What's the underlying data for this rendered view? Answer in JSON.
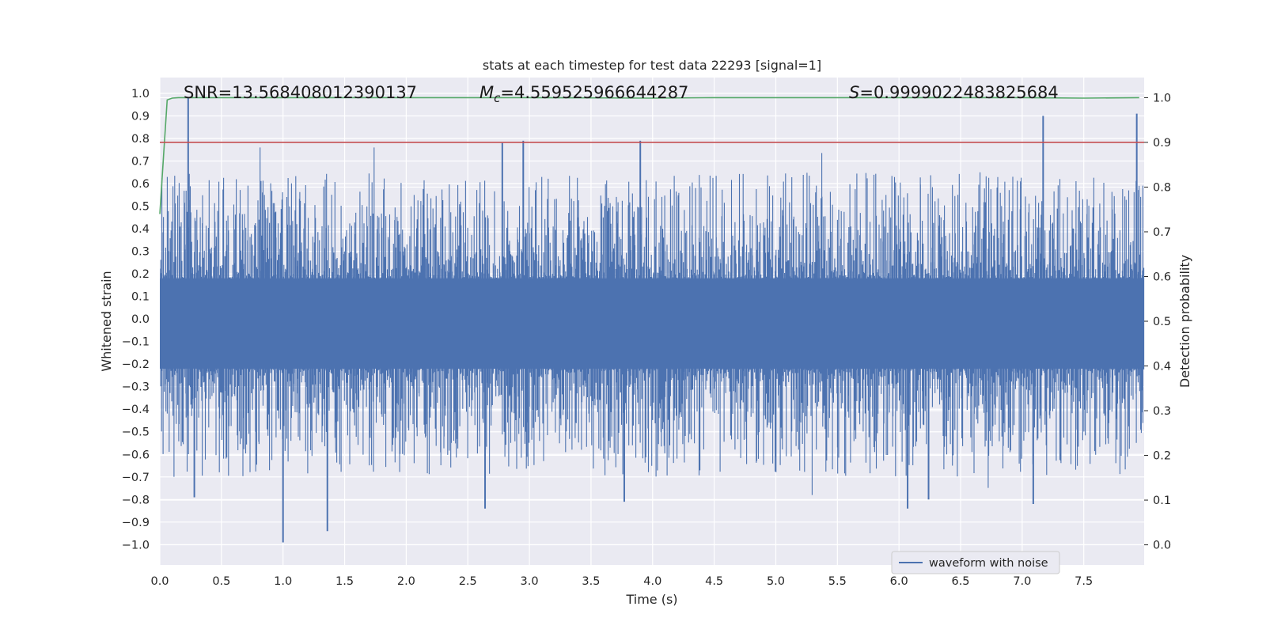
{
  "chart_data": {
    "type": "line",
    "title": "stats at each timestep for test data 22293 [signal=1]",
    "xlabel": "Time (s)",
    "ylabel": "Whitened strain",
    "y2label": "Detection probability",
    "xlim": [
      0.0,
      7.99
    ],
    "ylim": [
      -1.09,
      1.07
    ],
    "y2lim": [
      -0.045,
      1.045
    ],
    "xticks": [
      "0.0",
      "0.5",
      "1.0",
      "1.5",
      "2.0",
      "2.5",
      "3.0",
      "3.5",
      "4.0",
      "4.5",
      "5.0",
      "5.5",
      "6.0",
      "6.5",
      "7.0",
      "7.5"
    ],
    "xtick_values": [
      0.0,
      0.5,
      1.0,
      1.5,
      2.0,
      2.5,
      3.0,
      3.5,
      4.0,
      4.5,
      5.0,
      5.5,
      6.0,
      6.5,
      7.0,
      7.5
    ],
    "yticks": [
      "1.0",
      "0.9",
      "0.8",
      "0.7",
      "0.6",
      "0.5",
      "0.4",
      "0.3",
      "0.2",
      "0.1",
      "0.0",
      "−0.1",
      "−0.2",
      "−0.3",
      "−0.4",
      "−0.5",
      "−0.6",
      "−0.7",
      "−0.8",
      "−0.9",
      "−1.0"
    ],
    "ytick_values": [
      1.0,
      0.9,
      0.8,
      0.7,
      0.6,
      0.5,
      0.4,
      0.3,
      0.2,
      0.1,
      0.0,
      -0.1,
      -0.2,
      -0.3,
      -0.4,
      -0.5,
      -0.6,
      -0.7,
      -0.8,
      -0.9,
      -1.0
    ],
    "y2ticks": [
      "1.0",
      "0.9",
      "0.8",
      "0.7",
      "0.6",
      "0.5",
      "0.4",
      "0.3",
      "0.2",
      "0.1",
      "0.0"
    ],
    "y2tick_values": [
      1.0,
      0.9,
      0.8,
      0.7,
      0.6,
      0.5,
      0.4,
      0.3,
      0.2,
      0.1,
      0.0
    ],
    "grid": true,
    "legend_position": "lower-right",
    "annotations": {
      "snr": "SNR=13.568408012390137",
      "mc_symbol": "M",
      "mc_subscript": "c",
      "mc_value": "=4.559525966644287",
      "s_symbol": "S",
      "s_value": "=0.9999022483825684"
    },
    "series": [
      {
        "name": "waveform with noise",
        "axis": "left",
        "color": "#4c72b0",
        "kind": "dense-noise",
        "bulk_range": [
          -0.22,
          0.18
        ],
        "typical_peak": 0.55,
        "extreme_peaks": [
          {
            "x": 0.23,
            "y": 0.98
          },
          {
            "x": 2.78,
            "y": 0.78
          },
          {
            "x": 2.95,
            "y": 0.79
          },
          {
            "x": 3.9,
            "y": 0.79
          },
          {
            "x": 7.17,
            "y": 0.9
          },
          {
            "x": 7.93,
            "y": 0.91
          },
          {
            "x": 1.0,
            "y": -0.99
          },
          {
            "x": 1.36,
            "y": -0.94
          },
          {
            "x": 0.28,
            "y": -0.79
          },
          {
            "x": 2.64,
            "y": -0.84
          },
          {
            "x": 3.77,
            "y": -0.81
          },
          {
            "x": 6.07,
            "y": -0.84
          },
          {
            "x": 7.09,
            "y": -0.82
          },
          {
            "x": 6.24,
            "y": -0.8
          }
        ]
      },
      {
        "name": "",
        "axis": "right",
        "color": "#55a868",
        "kind": "line",
        "x": [
          0.0,
          0.03,
          0.06,
          0.1,
          0.15,
          0.5,
          1.0,
          2.0,
          3.0,
          4.0,
          4.5,
          5.0,
          6.0,
          7.0,
          7.5,
          7.95
        ],
        "y": [
          0.74,
          0.87,
          0.995,
          0.999,
          1.0,
          1.0,
          1.0,
          1.0,
          1.0,
          0.999,
          1.0,
          1.0,
          1.0,
          1.0,
          0.999,
          1.0
        ]
      },
      {
        "name": "",
        "axis": "right",
        "color": "#c44e52",
        "kind": "line",
        "x": [
          0.0,
          7.99
        ],
        "y": [
          0.9,
          0.9
        ]
      }
    ]
  }
}
